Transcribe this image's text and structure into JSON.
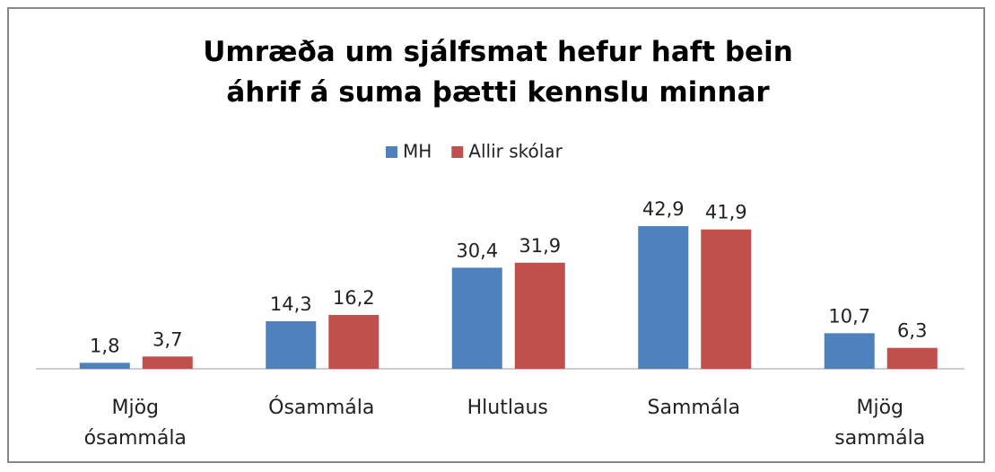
{
  "chart_data": {
    "type": "bar",
    "title": "Umræða um sjálfsmat hefur haft bein áhrif á suma þætti kennslu minnar",
    "categories": [
      "Mjög ósammála",
      "Ósammála",
      "Hlutlaus",
      "Sammála",
      "Mjög sammála"
    ],
    "series": [
      {
        "name": "MH",
        "color": "#4f81bd",
        "values": [
          1.8,
          14.3,
          30.4,
          42.9,
          10.7
        ],
        "value_labels": [
          "1,8",
          "14,3",
          "30,4",
          "42,9",
          "10,7"
        ]
      },
      {
        "name": "Allir skólar",
        "color": "#c0504d",
        "values": [
          3.7,
          16.2,
          31.9,
          41.9,
          6.3
        ],
        "value_labels": [
          "3,7",
          "16,2",
          "31,9",
          "41,9",
          "6,3"
        ]
      }
    ],
    "legend": "top"
  }
}
